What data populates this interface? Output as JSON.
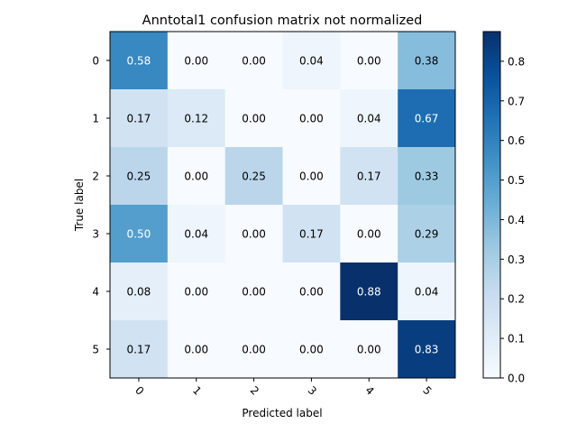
{
  "chart_data": {
    "type": "heatmap",
    "title": "Anntotal1 confusion matrix not normalized",
    "xlabel": "Predicted label",
    "ylabel": "True label",
    "x_categories": [
      "0",
      "1",
      "2",
      "3",
      "4",
      "5"
    ],
    "y_categories": [
      "0",
      "1",
      "2",
      "3",
      "4",
      "5"
    ],
    "values": [
      [
        0.58,
        0.0,
        0.0,
        0.04,
        0.0,
        0.38
      ],
      [
        0.17,
        0.12,
        0.0,
        0.0,
        0.04,
        0.67
      ],
      [
        0.25,
        0.0,
        0.25,
        0.0,
        0.17,
        0.33
      ],
      [
        0.5,
        0.04,
        0.0,
        0.17,
        0.0,
        0.29
      ],
      [
        0.08,
        0.0,
        0.0,
        0.0,
        0.88,
        0.04
      ],
      [
        0.17,
        0.0,
        0.0,
        0.0,
        0.0,
        0.83
      ]
    ],
    "value_format": "0.00",
    "colormap": "Blues",
    "colorbar": {
      "min": 0.0,
      "max": 0.875,
      "ticks": [
        0.0,
        0.1,
        0.2,
        0.3,
        0.4,
        0.5,
        0.6,
        0.7,
        0.8
      ],
      "tick_labels": [
        "0.0",
        "0.1",
        "0.2",
        "0.3",
        "0.4",
        "0.5",
        "0.6",
        "0.7",
        "0.8"
      ]
    },
    "x_tick_rotation": 45,
    "text_color_dark": "#000000",
    "text_color_light": "#ffffff"
  }
}
